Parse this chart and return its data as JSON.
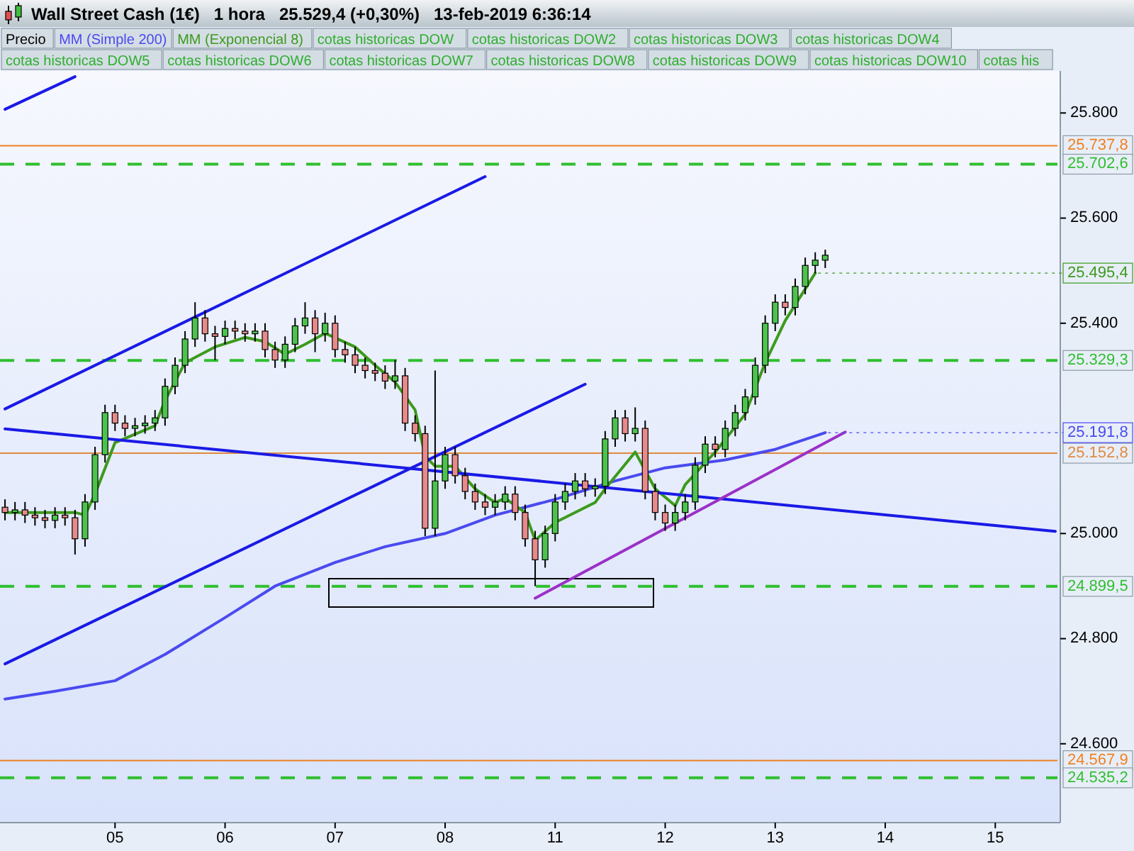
{
  "chart_data": {
    "type": "candlestick",
    "title": "Wall Street Cash (1€)   1 hora   25.529,4 (+0,30%)   13-feb-2019 6:36:14",
    "legend": "top left",
    "categories": [
      null,
      null,
      null,
      null,
      null,
      null,
      null,
      null,
      null,
      null,
      null,
      "05",
      null,
      null,
      null,
      null,
      null,
      null,
      null,
      null,
      null,
      null,
      "06",
      null,
      null,
      null,
      null,
      null,
      null,
      null,
      null,
      null,
      null,
      "07",
      null,
      null,
      null,
      null,
      null,
      null,
      null,
      null,
      null,
      null,
      "08",
      null,
      null,
      null,
      null,
      null,
      null,
      null,
      null,
      null,
      null,
      "11",
      null,
      null,
      null,
      null,
      null,
      null,
      null,
      null,
      null,
      null,
      "12",
      null,
      null,
      null,
      null,
      null,
      null,
      null,
      null,
      null,
      null,
      "13",
      null,
      null,
      null,
      null,
      null,
      null,
      null,
      null,
      null,
      null,
      "14",
      null,
      null,
      null,
      null,
      null,
      null,
      null,
      null,
      null,
      null,
      "15",
      null,
      null,
      null,
      null,
      null,
      null
    ],
    "ylim": [
      24450,
      25880
    ],
    "yticks": [
      {
        "value": 24600,
        "label": "24.600"
      },
      {
        "value": 24800,
        "label": "24.800"
      },
      {
        "value": 25000,
        "label": "25.000"
      },
      {
        "value": 25400,
        "label": "25.400"
      },
      {
        "value": 25600,
        "label": "25.600"
      },
      {
        "value": 25800,
        "label": "25.800"
      }
    ],
    "series": [
      {
        "name": "Precio",
        "colors": [
          "#e88a8a",
          "#4cc44c",
          "#e88a8a",
          "#e88a8a",
          "#e88a8a",
          "#4cc44c",
          "#e88a8a",
          "#e88a8a",
          "#4cc44c",
          "#4cc44c",
          "#4cc44c",
          "#e88a8a",
          "#e88a8a",
          "#4cc44c",
          "#4cc44c",
          "#4cc44c",
          "#4cc44c",
          "#4cc44c",
          "#4cc44c",
          "#4cc44c",
          "#e88a8a",
          "#e88a8a",
          "#4cc44c",
          "#e88a8a",
          "#e88a8a",
          "#4cc44c",
          "#e88a8a",
          "#e88a8a",
          "#4cc44c",
          "#4cc44c",
          "#4cc44c",
          "#e88a8a",
          "#4cc44c",
          "#e88a8a",
          "#e88a8a",
          "#e88a8a",
          "#e88a8a",
          "#e88a8a",
          "#e88a8a",
          "#4cc44c",
          "#e88a8a",
          "#e88a8a",
          "#e88a8a",
          "#4cc44c",
          "#4cc44c",
          "#e88a8a",
          "#e88a8a",
          "#e88a8a",
          "#e88a8a",
          "#4cc44c",
          "#4cc44c",
          "#e88a8a",
          "#e88a8a",
          "#e88a8a",
          "#4cc44c",
          "#4cc44c",
          "#4cc44c",
          "#4cc44c",
          "#e88a8a",
          "#4cc44c",
          "#4cc44c",
          "#4cc44c",
          "#e88a8a",
          "#4cc44c",
          "#e88a8a",
          "#e88a8a",
          "#e88a8a",
          "#4cc44c",
          "#4cc44c",
          "#4cc44c",
          "#4cc44c",
          "#e88a8a",
          "#4cc44c",
          "#4cc44c",
          "#4cc44c",
          "#4cc44c",
          "#4cc44c",
          "#4cc44c",
          "#e88a8a",
          "#4cc44c",
          "#4cc44c",
          "#4cc44c",
          "#4cc44c",
          null,
          null,
          null,
          null,
          null,
          null,
          null,
          null,
          null,
          null,
          null,
          null,
          null,
          null,
          null,
          null,
          null,
          null,
          null,
          null,
          null,
          null,
          null
        ],
        "ohlc": [
          [
            25050,
            25065,
            25025,
            25040
          ],
          [
            25040,
            25060,
            25025,
            25045
          ],
          [
            25045,
            25060,
            25020,
            25035
          ],
          [
            25035,
            25050,
            25015,
            25030
          ],
          [
            25030,
            25045,
            25010,
            25025
          ],
          [
            25025,
            25050,
            25010,
            25035
          ],
          [
            25035,
            25050,
            25015,
            25030
          ],
          [
            25030,
            25045,
            24960,
            24990
          ],
          [
            24990,
            25075,
            24975,
            25060
          ],
          [
            25060,
            25165,
            25045,
            25150
          ],
          [
            25150,
            25245,
            25135,
            25230
          ],
          [
            25230,
            25245,
            25195,
            25210
          ],
          [
            25210,
            25225,
            25185,
            25200
          ],
          [
            25200,
            25220,
            25185,
            25205
          ],
          [
            25205,
            25225,
            25190,
            25210
          ],
          [
            25210,
            25235,
            25195,
            25220
          ],
          [
            25220,
            25295,
            25205,
            25280
          ],
          [
            25280,
            25335,
            25265,
            25320
          ],
          [
            25320,
            25385,
            25305,
            25370
          ],
          [
            25370,
            25440,
            25355,
            25410
          ],
          [
            25410,
            25425,
            25365,
            25380
          ],
          [
            25380,
            25395,
            25330,
            25375
          ],
          [
            25375,
            25405,
            25360,
            25390
          ],
          [
            25390,
            25405,
            25370,
            25385
          ],
          [
            25385,
            25400,
            25365,
            25380
          ],
          [
            25380,
            25400,
            25365,
            25385
          ],
          [
            25385,
            25400,
            25335,
            25350
          ],
          [
            25350,
            25365,
            25315,
            25330
          ],
          [
            25330,
            25375,
            25315,
            25360
          ],
          [
            25360,
            25410,
            25345,
            25395
          ],
          [
            25395,
            25440,
            25380,
            25410
          ],
          [
            25410,
            25425,
            25345,
            25380
          ],
          [
            25380,
            25420,
            25365,
            25400
          ],
          [
            25400,
            25415,
            25335,
            25350
          ],
          [
            25350,
            25365,
            25325,
            25340
          ],
          [
            25340,
            25355,
            25305,
            25320
          ],
          [
            25320,
            25335,
            25295,
            25310
          ],
          [
            25310,
            25325,
            25290,
            25305
          ],
          [
            25305,
            25320,
            25275,
            25290
          ],
          [
            25290,
            25330,
            25275,
            25300
          ],
          [
            25300,
            25315,
            25195,
            25210
          ],
          [
            25210,
            25225,
            25175,
            25190
          ],
          [
            25190,
            25205,
            24995,
            25010
          ],
          [
            25010,
            25310,
            24995,
            25100
          ],
          [
            25100,
            25165,
            25085,
            25150
          ],
          [
            25150,
            25165,
            25095,
            25110
          ],
          [
            25110,
            25125,
            25065,
            25080
          ],
          [
            25080,
            25095,
            25045,
            25060
          ],
          [
            25060,
            25075,
            25035,
            25050
          ],
          [
            25050,
            25075,
            25035,
            25060
          ],
          [
            25060,
            25090,
            25045,
            25075
          ],
          [
            25075,
            25090,
            25025,
            25040
          ],
          [
            25040,
            25055,
            24975,
            24990
          ],
          [
            24990,
            25005,
            24900,
            24950
          ],
          [
            24950,
            25015,
            24935,
            25000
          ],
          [
            25000,
            25075,
            24985,
            25060
          ],
          [
            25060,
            25095,
            25045,
            25080
          ],
          [
            25080,
            25115,
            25065,
            25100
          ],
          [
            25100,
            25115,
            25070,
            25085
          ],
          [
            25085,
            25105,
            25070,
            25090
          ],
          [
            25090,
            25195,
            25075,
            25180
          ],
          [
            25180,
            25235,
            25165,
            25220
          ],
          [
            25220,
            25235,
            25175,
            25190
          ],
          [
            25190,
            25240,
            25175,
            25200
          ],
          [
            25200,
            25215,
            25065,
            25080
          ],
          [
            25080,
            25095,
            25025,
            25040
          ],
          [
            25040,
            25055,
            25005,
            25020
          ],
          [
            25020,
            25055,
            25005,
            25040
          ],
          [
            25040,
            25075,
            25025,
            25060
          ],
          [
            25060,
            25145,
            25045,
            25130
          ],
          [
            25130,
            25185,
            25115,
            25170
          ],
          [
            25170,
            25185,
            25145,
            25160
          ],
          [
            25160,
            25215,
            25145,
            25200
          ],
          [
            25200,
            25245,
            25185,
            25230
          ],
          [
            25230,
            25275,
            25215,
            25260
          ],
          [
            25260,
            25335,
            25245,
            25320
          ],
          [
            25320,
            25415,
            25305,
            25400
          ],
          [
            25400,
            25455,
            25385,
            25440
          ],
          [
            25440,
            25455,
            25415,
            25430
          ],
          [
            25430,
            25485,
            25415,
            25470
          ],
          [
            25470,
            25525,
            25455,
            25510
          ],
          [
            25510,
            25535,
            25495,
            25520
          ],
          [
            25520,
            25540,
            25505,
            25529.4
          ],
          null,
          null,
          null,
          null,
          null,
          null,
          null,
          null,
          null,
          null,
          null,
          null,
          null,
          null,
          null,
          null,
          null,
          null,
          null,
          null,
          null,
          null,
          null
        ]
      },
      {
        "name": "MM (Simple 200)",
        "type": "line",
        "color": "#4a4af0",
        "value_labels": [
          null,
          null,
          null,
          null,
          null,
          null,
          null,
          null,
          null,
          null,
          null,
          null,
          null,
          null,
          null,
          null,
          null,
          null,
          null,
          null,
          null,
          null,
          null,
          null,
          null,
          null,
          null,
          null,
          null,
          null,
          null,
          null,
          null,
          null,
          null,
          null,
          null,
          null,
          null,
          null,
          null,
          null,
          null,
          null,
          null,
          null,
          null,
          null,
          null,
          null,
          null,
          null,
          null,
          null,
          null,
          null,
          null,
          null,
          null,
          null,
          null,
          null,
          null,
          null,
          null,
          null,
          null,
          null,
          null,
          null,
          null,
          null,
          null,
          null,
          null,
          null,
          null,
          null,
          null,
          null,
          null,
          null,
          "25.191,8",
          null,
          null,
          null,
          null,
          null,
          null,
          null,
          null,
          null,
          null,
          null,
          null,
          null,
          null,
          null,
          null,
          null,
          null,
          null,
          null,
          null,
          null,
          null
        ],
        "values": [
          24685,
          null,
          null,
          null,
          null,
          24700,
          null,
          null,
          null,
          null,
          null,
          24720,
          null,
          null,
          null,
          null,
          24770,
          null,
          null,
          null,
          null,
          null,
          24840,
          null,
          null,
          null,
          null,
          24900,
          null,
          null,
          null,
          null,
          null,
          24945,
          null,
          null,
          null,
          null,
          24975,
          null,
          null,
          null,
          null,
          null,
          25000,
          null,
          null,
          null,
          null,
          25035,
          null,
          null,
          null,
          null,
          null,
          25065,
          null,
          null,
          null,
          null,
          null,
          25100,
          null,
          null,
          null,
          null,
          25125,
          null,
          null,
          null,
          null,
          null,
          25140,
          null,
          null,
          null,
          null,
          25160,
          null,
          null,
          null,
          null,
          25191.8,
          null,
          null,
          null,
          null,
          null,
          null,
          null,
          null,
          null,
          null,
          null,
          null,
          null,
          null,
          null,
          null,
          null,
          null,
          null,
          null,
          null,
          null,
          null
        ]
      },
      {
        "name": "MM (Exponencial 8)",
        "type": "line",
        "color": "#3c9a1c",
        "value_labels": [
          null,
          null,
          null,
          null,
          null,
          null,
          null,
          null,
          null,
          null,
          null,
          null,
          null,
          null,
          null,
          null,
          null,
          null,
          null,
          null,
          null,
          null,
          null,
          null,
          null,
          null,
          null,
          null,
          null,
          null,
          null,
          null,
          null,
          null,
          null,
          null,
          null,
          null,
          null,
          null,
          null,
          null,
          null,
          null,
          null,
          null,
          null,
          null,
          null,
          null,
          null,
          null,
          null,
          null,
          null,
          null,
          null,
          null,
          null,
          null,
          null,
          null,
          null,
          null,
          null,
          null,
          null,
          null,
          null,
          null,
          null,
          null,
          null,
          null,
          null,
          null,
          null,
          null,
          null,
          null,
          null,
          "25.495,4",
          null,
          null,
          null,
          null,
          null,
          null,
          null,
          null,
          null,
          null,
          null,
          null,
          null,
          null,
          null,
          null,
          null,
          null,
          null,
          null,
          null,
          null,
          null,
          null
        ],
        "values": [
          25040,
          null,
          null,
          null,
          null,
          null,
          null,
          25040,
          25035,
          25075,
          null,
          25173,
          null,
          null,
          null,
          25205,
          25253,
          null,
          25325,
          null,
          null,
          25355,
          null,
          null,
          25373,
          null,
          25365,
          null,
          25341,
          null,
          25360,
          null,
          25381,
          null,
          null,
          25355,
          null,
          25320,
          null,
          25288,
          null,
          25235,
          25147,
          25128,
          null,
          25128,
          null,
          25085,
          null,
          25059,
          25067,
          null,
          25040,
          24987,
          null,
          25021,
          null,
          null,
          null,
          25059,
          25085,
          null,
          null,
          25155,
          null,
          25085,
          null,
          25053,
          25093,
          null,
          null,
          25155,
          null,
          null,
          25227,
          null,
          25325,
          null,
          25405,
          null,
          null,
          25495.4,
          null,
          null,
          null,
          null,
          null,
          null,
          null,
          null,
          null,
          null,
          null,
          null,
          null,
          null,
          null,
          null,
          null,
          null,
          null,
          null,
          null,
          null,
          null,
          null
        ]
      },
      {
        "type": "line",
        "color": "#1a1ae6",
        "values": [
          25237,
          null,
          null,
          null,
          null,
          null,
          null,
          null,
          null,
          null,
          null,
          null,
          null,
          null,
          null,
          null,
          null,
          null,
          null,
          null,
          null,
          null,
          null,
          null,
          null,
          null,
          null,
          null,
          null,
          null,
          null,
          null,
          null,
          null,
          null,
          null,
          null,
          null,
          null,
          null,
          null,
          null,
          null,
          null,
          null,
          null,
          null,
          null,
          25679,
          null,
          null,
          null,
          null,
          null,
          null,
          null,
          null,
          null,
          null,
          null,
          null,
          null,
          null,
          null,
          null,
          null,
          null,
          null,
          null,
          null,
          null,
          null,
          null,
          null,
          null,
          null,
          null,
          null,
          null,
          null,
          null,
          null,
          null,
          null,
          null,
          null,
          null,
          null,
          null,
          null,
          null,
          null,
          null,
          null,
          null,
          null,
          null,
          null,
          null,
          null,
          null,
          null,
          null,
          null,
          null,
          null
        ]
      },
      {
        "type": "line",
        "color": "#1a1ae6",
        "values": [
          24752,
          null,
          null,
          null,
          null,
          null,
          null,
          null,
          null,
          null,
          null,
          null,
          null,
          null,
          null,
          null,
          null,
          null,
          null,
          null,
          null,
          null,
          null,
          null,
          null,
          null,
          null,
          null,
          null,
          null,
          null,
          null,
          null,
          null,
          null,
          null,
          null,
          null,
          null,
          null,
          null,
          null,
          null,
          null,
          null,
          null,
          null,
          null,
          null,
          null,
          null,
          null,
          null,
          null,
          null,
          null,
          null,
          null,
          25284,
          null,
          null,
          null,
          null,
          null,
          null,
          null,
          null,
          null,
          null,
          null,
          null,
          null,
          null,
          null,
          null,
          null,
          null,
          null,
          null,
          null,
          null,
          null,
          null,
          null,
          null,
          null,
          null,
          null,
          null,
          null,
          null,
          null,
          null,
          null,
          null,
          null,
          null,
          null,
          null,
          null,
          null,
          null,
          null,
          null,
          null,
          null
        ]
      },
      {
        "type": "line",
        "color": "#1a1ae6",
        "values": [
          25199,
          null,
          null,
          null,
          null,
          null,
          null,
          null,
          null,
          null,
          null,
          null,
          null,
          null,
          null,
          null,
          null,
          null,
          null,
          null,
          null,
          null,
          null,
          null,
          null,
          null,
          null,
          null,
          null,
          null,
          null,
          null,
          null,
          null,
          null,
          null,
          null,
          null,
          null,
          null,
          null,
          null,
          null,
          null,
          null,
          null,
          null,
          null,
          null,
          null,
          null,
          null,
          null,
          null,
          null,
          null,
          null,
          null,
          null,
          null,
          null,
          null,
          null,
          null,
          null,
          null,
          null,
          null,
          null,
          null,
          null,
          null,
          null,
          null,
          null,
          null,
          null,
          null,
          null,
          null,
          null,
          null,
          null,
          null,
          null,
          null,
          null,
          null,
          null,
          null,
          null,
          null,
          null,
          null,
          null,
          null,
          null,
          null,
          null,
          null,
          null,
          null,
          null,
          null,
          null,
          25004
        ]
      },
      {
        "type": "line",
        "color": "#1a1ae6",
        "values": [
          25807,
          null,
          null,
          null,
          null,
          null,
          null,
          25869,
          null,
          null,
          null,
          null,
          null,
          null,
          null,
          null,
          null,
          null,
          null,
          null,
          null,
          null,
          null,
          null,
          null,
          null,
          null,
          null,
          null,
          null,
          null,
          null,
          null,
          null,
          null,
          null,
          null,
          null,
          null,
          null,
          null,
          null,
          null,
          null,
          null,
          null,
          null,
          null,
          null,
          null,
          null,
          null,
          null,
          null,
          null,
          null,
          null,
          null,
          null,
          null,
          null,
          null,
          null,
          null,
          null,
          null,
          null,
          null,
          null,
          null,
          null,
          null,
          null,
          null,
          null,
          null,
          null,
          null,
          null,
          null,
          null,
          null,
          null,
          null,
          null,
          null,
          null,
          null,
          null,
          null,
          null,
          null,
          null,
          null,
          null,
          null,
          null,
          null,
          null,
          null,
          null,
          null,
          null,
          null,
          null,
          null
        ]
      },
      {
        "type": "line",
        "color": "#9b30c8",
        "values": [
          null,
          null,
          null,
          null,
          null,
          null,
          null,
          null,
          null,
          null,
          null,
          null,
          null,
          null,
          null,
          null,
          null,
          null,
          null,
          null,
          null,
          null,
          null,
          null,
          null,
          null,
          null,
          null,
          null,
          null,
          null,
          null,
          null,
          null,
          null,
          null,
          null,
          null,
          null,
          null,
          null,
          null,
          null,
          null,
          null,
          null,
          null,
          null,
          null,
          null,
          null,
          null,
          null,
          24877,
          null,
          null,
          null,
          null,
          null,
          null,
          null,
          null,
          null,
          null,
          null,
          null,
          null,
          null,
          null,
          null,
          null,
          null,
          null,
          null,
          null,
          null,
          null,
          null,
          null,
          null,
          null,
          null,
          null,
          null,
          25193,
          null,
          null,
          null,
          null,
          null,
          null,
          null,
          null,
          null,
          null,
          null,
          null,
          null,
          null,
          null,
          null,
          null,
          null,
          null,
          null,
          null
        ]
      }
    ],
    "ref_lines": [
      {
        "axis": "y",
        "value": 25737.8,
        "label": "25.737,8",
        "color": "#f08020",
        "line_style": "solid"
      },
      {
        "axis": "y",
        "value": 25702.6,
        "label": "25.702,6",
        "color": "#2fbf2f",
        "line_style": "dashed"
      },
      {
        "axis": "y",
        "value": 25329.3,
        "label": "25.329,3",
        "color": "#2fbf2f",
        "line_style": "dashed"
      },
      {
        "axis": "y",
        "value": 25152.8,
        "label": "25.152,8",
        "color": "#e08a40",
        "line_style": "solid"
      },
      {
        "axis": "y",
        "value": 24899.5,
        "label": "24.899,5",
        "color": "#2fbf2f",
        "line_style": "dashed"
      },
      {
        "axis": "y",
        "value": 24567.9,
        "label": "24.567,9",
        "color": "#f08020",
        "line_style": "solid"
      },
      {
        "axis": "y",
        "value": 24535.2,
        "label": "24.535,2",
        "color": "#2fbf2f",
        "line_style": "dashed"
      }
    ],
    "annotations": [
      "cotas historicas DOW",
      "cotas historicas DOW2",
      "cotas historicas DOW3",
      "cotas historicas DOW4",
      "cotas historicas DOW5",
      "cotas historicas DOW6",
      "cotas historicas DOW7",
      "cotas historicas DOW8",
      "cotas historicas DOW9",
      "cotas historicas DOW10",
      "cotas his"
    ]
  }
}
